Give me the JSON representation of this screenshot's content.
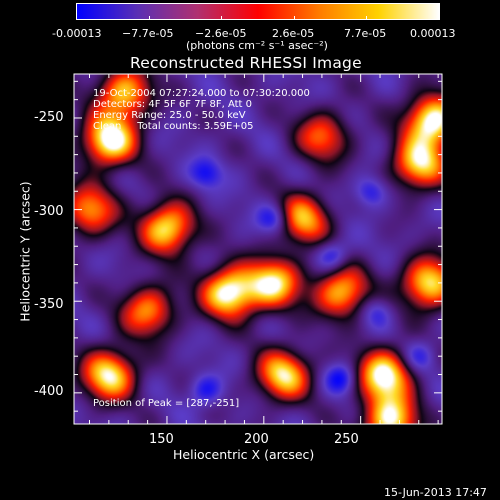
{
  "colorbar": {
    "tick_labels": [
      "-0.00013",
      "−7.7e-05",
      "−2.6e-05",
      "2.6e-05",
      "7.7e-05",
      "0.00013"
    ],
    "units_label": "(photons cm⁻² s⁻¹ asec⁻²)",
    "min": -0.00013,
    "max": 0.00013,
    "gradient": [
      "#0000ff",
      "#5a2fb4",
      "#b03070",
      "#ff0000",
      "#ff7a00",
      "#ffd200",
      "#ffffff"
    ]
  },
  "chart_data": {
    "type": "heatmap",
    "title": "Reconstructed RHESSI Image",
    "xlabel": "Heliocentric X (arcsec)",
    "ylabel": "Heliocentric Y (arcsec)",
    "xlim": [
      102,
      292
    ],
    "ylim": [
      -417,
      -226
    ],
    "x_ticks": [
      150,
      200,
      250
    ],
    "y_ticks": [
      -250,
      -300,
      -350,
      -400
    ],
    "peak": [
      287,
      -251
    ],
    "annotations": [
      "19-Oct-2004 07:27:24.000 to 07:30:20.000",
      "Detectors: 4F 5F 6F 7F 8F, Att 0",
      "Energy Range: 25.0 - 50.0 keV",
      "Clean     Total counts: 3.59E+05"
    ],
    "peak_label": "Position of Peak = [287,-251]",
    "bright_sources": [
      {
        "x": 120,
        "y": -262,
        "v": 1.0
      },
      {
        "x": 128,
        "y": -236,
        "v": 0.8
      },
      {
        "x": 110,
        "y": -300,
        "v": 0.7
      },
      {
        "x": 150,
        "y": -310,
        "v": 0.9
      },
      {
        "x": 182,
        "y": -345,
        "v": 1.0
      },
      {
        "x": 205,
        "y": -340,
        "v": 0.85
      },
      {
        "x": 220,
        "y": -305,
        "v": 0.75
      },
      {
        "x": 240,
        "y": -345,
        "v": 0.8
      },
      {
        "x": 280,
        "y": -275,
        "v": 0.85
      },
      {
        "x": 287,
        "y": -251,
        "v": 1.0
      },
      {
        "x": 285,
        "y": -340,
        "v": 0.9
      },
      {
        "x": 262,
        "y": -390,
        "v": 0.95
      },
      {
        "x": 210,
        "y": -390,
        "v": 0.85
      },
      {
        "x": 120,
        "y": -390,
        "v": 0.9
      },
      {
        "x": 140,
        "y": -355,
        "v": 0.7
      },
      {
        "x": 265,
        "y": -415,
        "v": 0.9
      },
      {
        "x": 230,
        "y": -260,
        "v": 0.6
      }
    ],
    "dark_sources": [
      {
        "x": 205,
        "y": -305,
        "v": 0.9
      },
      {
        "x": 235,
        "y": -325,
        "v": 0.8
      },
      {
        "x": 255,
        "y": -290,
        "v": 0.7
      },
      {
        "x": 170,
        "y": -280,
        "v": 0.7
      },
      {
        "x": 240,
        "y": -392,
        "v": 0.85
      },
      {
        "x": 170,
        "y": -398,
        "v": 0.7
      },
      {
        "x": 258,
        "y": -355,
        "v": 0.6
      },
      {
        "x": 280,
        "y": -380,
        "v": 0.6
      }
    ]
  },
  "footer": {
    "date": "15-Jun-2013 17:47"
  }
}
